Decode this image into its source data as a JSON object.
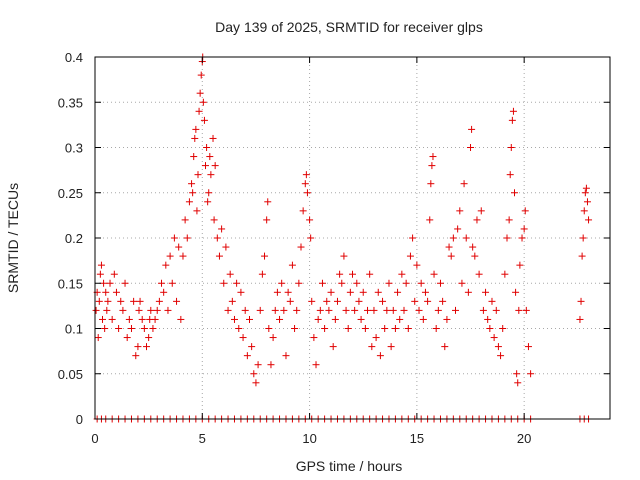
{
  "chart_data": {
    "type": "scatter",
    "title": "Day 139 of 2025, SRMTID for receiver glps",
    "xlabel": "GPS time / hours",
    "ylabel": "SRMTID / TECUs",
    "xlim": [
      0,
      24
    ],
    "ylim": [
      0,
      0.4
    ],
    "x_ticks": [
      0,
      5,
      10,
      15,
      20
    ],
    "x_tick_labels": [
      "0",
      "5",
      "10",
      "15",
      "20"
    ],
    "y_ticks": [
      0,
      0.05,
      0.1,
      0.15,
      0.2,
      0.25,
      0.3,
      0.35,
      0.4
    ],
    "y_tick_labels": [
      "0",
      "0.05",
      "0.1",
      "0.15",
      "0.2",
      "0.25",
      "0.3",
      "0.35",
      "0.4"
    ],
    "grid": true,
    "marker": "plus",
    "marker_color": "#e00000",
    "series": [
      {
        "name": "SRMTID",
        "points": [
          [
            0.05,
            0.12
          ],
          [
            0.1,
            0.14
          ],
          [
            0.15,
            0.09
          ],
          [
            0.2,
            0.13
          ],
          [
            0.25,
            0.16
          ],
          [
            0.3,
            0.17
          ],
          [
            0.35,
            0.11
          ],
          [
            0.4,
            0.15
          ],
          [
            0.45,
            0.1
          ],
          [
            0.5,
            0.14
          ],
          [
            0.55,
            0.12
          ],
          [
            0.6,
            0.13
          ],
          [
            0.7,
            0.15
          ],
          [
            0.8,
            0.11
          ],
          [
            0.9,
            0.16
          ],
          [
            1.0,
            0.14
          ],
          [
            1.1,
            0.1
          ],
          [
            1.2,
            0.13
          ],
          [
            1.3,
            0.12
          ],
          [
            1.4,
            0.15
          ],
          [
            1.5,
            0.09
          ],
          [
            1.6,
            0.11
          ],
          [
            1.7,
            0.1
          ],
          [
            1.8,
            0.13
          ],
          [
            1.9,
            0.07
          ],
          [
            2.0,
            0.08
          ],
          [
            2.05,
            0.12
          ],
          [
            2.1,
            0.13
          ],
          [
            2.2,
            0.11
          ],
          [
            2.3,
            0.1
          ],
          [
            2.4,
            0.08
          ],
          [
            2.5,
            0.09
          ],
          [
            2.55,
            0.11
          ],
          [
            2.6,
            0.12
          ],
          [
            2.7,
            0.1
          ],
          [
            2.8,
            0.11
          ],
          [
            2.9,
            0.12
          ],
          [
            3.0,
            0.13
          ],
          [
            3.1,
            0.15
          ],
          [
            3.2,
            0.14
          ],
          [
            3.3,
            0.17
          ],
          [
            3.4,
            0.12
          ],
          [
            3.5,
            0.18
          ],
          [
            3.6,
            0.15
          ],
          [
            3.7,
            0.2
          ],
          [
            3.8,
            0.13
          ],
          [
            3.9,
            0.19
          ],
          [
            4.0,
            0.11
          ],
          [
            4.1,
            0.18
          ],
          [
            4.2,
            0.22
          ],
          [
            4.3,
            0.2
          ],
          [
            4.4,
            0.24
          ],
          [
            4.5,
            0.26
          ],
          [
            4.55,
            0.25
          ],
          [
            4.6,
            0.29
          ],
          [
            4.65,
            0.31
          ],
          [
            4.7,
            0.32
          ],
          [
            4.75,
            0.23
          ],
          [
            4.8,
            0.27
          ],
          [
            4.85,
            0.34
          ],
          [
            4.9,
            0.36
          ],
          [
            4.95,
            0.38
          ],
          [
            5.0,
            0.395
          ],
          [
            5.02,
            0.4
          ],
          [
            5.05,
            0.35
          ],
          [
            5.1,
            0.33
          ],
          [
            5.15,
            0.28
          ],
          [
            5.2,
            0.3
          ],
          [
            5.25,
            0.24
          ],
          [
            5.3,
            0.25
          ],
          [
            5.35,
            0.29
          ],
          [
            5.4,
            0.27
          ],
          [
            5.5,
            0.31
          ],
          [
            5.55,
            0.22
          ],
          [
            5.6,
            0.28
          ],
          [
            5.7,
            0.2
          ],
          [
            5.8,
            0.18
          ],
          [
            5.9,
            0.21
          ],
          [
            6.0,
            0.15
          ],
          [
            6.1,
            0.19
          ],
          [
            6.2,
            0.12
          ],
          [
            6.3,
            0.16
          ],
          [
            6.4,
            0.13
          ],
          [
            6.5,
            0.11
          ],
          [
            6.6,
            0.15
          ],
          [
            6.7,
            0.1
          ],
          [
            6.8,
            0.14
          ],
          [
            6.9,
            0.09
          ],
          [
            7.0,
            0.12
          ],
          [
            7.1,
            0.07
          ],
          [
            7.2,
            0.11
          ],
          [
            7.3,
            0.08
          ],
          [
            7.4,
            0.05
          ],
          [
            7.5,
            0.04
          ],
          [
            7.6,
            0.06
          ],
          [
            7.7,
            0.12
          ],
          [
            7.8,
            0.16
          ],
          [
            7.9,
            0.18
          ],
          [
            8.0,
            0.22
          ],
          [
            8.05,
            0.24
          ],
          [
            8.1,
            0.1
          ],
          [
            8.2,
            0.06
          ],
          [
            8.3,
            0.09
          ],
          [
            8.4,
            0.12
          ],
          [
            8.5,
            0.14
          ],
          [
            8.6,
            0.11
          ],
          [
            8.7,
            0.15
          ],
          [
            8.8,
            0.12
          ],
          [
            8.9,
            0.07
          ],
          [
            9.0,
            0.14
          ],
          [
            9.1,
            0.13
          ],
          [
            9.2,
            0.17
          ],
          [
            9.3,
            0.1
          ],
          [
            9.4,
            0.12
          ],
          [
            9.5,
            0.15
          ],
          [
            9.6,
            0.19
          ],
          [
            9.7,
            0.23
          ],
          [
            9.8,
            0.26
          ],
          [
            9.85,
            0.27
          ],
          [
            9.9,
            0.25
          ],
          [
            10.0,
            0.22
          ],
          [
            10.05,
            0.2
          ],
          [
            10.1,
            0.13
          ],
          [
            10.2,
            0.09
          ],
          [
            10.3,
            0.06
          ],
          [
            10.4,
            0.11
          ],
          [
            10.5,
            0.12
          ],
          [
            10.6,
            0.15
          ],
          [
            10.7,
            0.1
          ],
          [
            10.8,
            0.13
          ],
          [
            10.9,
            0.12
          ],
          [
            11.0,
            0.14
          ],
          [
            11.1,
            0.08
          ],
          [
            11.2,
            0.11
          ],
          [
            11.3,
            0.13
          ],
          [
            11.4,
            0.16
          ],
          [
            11.5,
            0.15
          ],
          [
            11.6,
            0.18
          ],
          [
            11.7,
            0.12
          ],
          [
            11.8,
            0.1
          ],
          [
            11.9,
            0.14
          ],
          [
            12.0,
            0.16
          ],
          [
            12.1,
            0.12
          ],
          [
            12.2,
            0.15
          ],
          [
            12.3,
            0.13
          ],
          [
            12.4,
            0.11
          ],
          [
            12.5,
            0.14
          ],
          [
            12.6,
            0.1
          ],
          [
            12.7,
            0.12
          ],
          [
            12.8,
            0.16
          ],
          [
            12.9,
            0.08
          ],
          [
            13.0,
            0.12
          ],
          [
            13.1,
            0.09
          ],
          [
            13.2,
            0.14
          ],
          [
            13.3,
            0.07
          ],
          [
            13.4,
            0.13
          ],
          [
            13.5,
            0.1
          ],
          [
            13.6,
            0.12
          ],
          [
            13.7,
            0.15
          ],
          [
            13.8,
            0.08
          ],
          [
            13.9,
            0.12
          ],
          [
            14.0,
            0.1
          ],
          [
            14.1,
            0.14
          ],
          [
            14.2,
            0.11
          ],
          [
            14.3,
            0.16
          ],
          [
            14.4,
            0.12
          ],
          [
            14.5,
            0.15
          ],
          [
            14.6,
            0.1
          ],
          [
            14.7,
            0.18
          ],
          [
            14.8,
            0.2
          ],
          [
            14.9,
            0.13
          ],
          [
            15.0,
            0.17
          ],
          [
            15.1,
            0.12
          ],
          [
            15.2,
            0.15
          ],
          [
            15.3,
            0.11
          ],
          [
            15.4,
            0.14
          ],
          [
            15.5,
            0.13
          ],
          [
            15.6,
            0.22
          ],
          [
            15.65,
            0.26
          ],
          [
            15.7,
            0.28
          ],
          [
            15.75,
            0.29
          ],
          [
            15.8,
            0.16
          ],
          [
            15.9,
            0.1
          ],
          [
            16.0,
            0.12
          ],
          [
            16.1,
            0.15
          ],
          [
            16.2,
            0.13
          ],
          [
            16.3,
            0.08
          ],
          [
            16.4,
            0.11
          ],
          [
            16.5,
            0.19
          ],
          [
            16.6,
            0.18
          ],
          [
            16.7,
            0.2
          ],
          [
            16.8,
            0.12
          ],
          [
            16.9,
            0.21
          ],
          [
            17.0,
            0.23
          ],
          [
            17.1,
            0.15
          ],
          [
            17.2,
            0.26
          ],
          [
            17.3,
            0.2
          ],
          [
            17.4,
            0.14
          ],
          [
            17.5,
            0.3
          ],
          [
            17.55,
            0.32
          ],
          [
            17.6,
            0.19
          ],
          [
            17.7,
            0.18
          ],
          [
            17.8,
            0.22
          ],
          [
            17.9,
            0.16
          ],
          [
            18.0,
            0.23
          ],
          [
            18.1,
            0.12
          ],
          [
            18.2,
            0.14
          ],
          [
            18.3,
            0.11
          ],
          [
            18.4,
            0.1
          ],
          [
            18.5,
            0.13
          ],
          [
            18.6,
            0.09
          ],
          [
            18.7,
            0.12
          ],
          [
            18.8,
            0.08
          ],
          [
            18.9,
            0.07
          ],
          [
            19.0,
            0.1
          ],
          [
            19.1,
            0.16
          ],
          [
            19.2,
            0.2
          ],
          [
            19.3,
            0.22
          ],
          [
            19.35,
            0.27
          ],
          [
            19.4,
            0.3
          ],
          [
            19.45,
            0.33
          ],
          [
            19.5,
            0.34
          ],
          [
            19.55,
            0.25
          ],
          [
            19.6,
            0.14
          ],
          [
            19.65,
            0.05
          ],
          [
            19.7,
            0.04
          ],
          [
            19.75,
            0.12
          ],
          [
            19.8,
            0.17
          ],
          [
            19.9,
            0.2
          ],
          [
            20.0,
            0.21
          ],
          [
            20.05,
            0.23
          ],
          [
            20.1,
            0.12
          ],
          [
            20.2,
            0.08
          ],
          [
            20.3,
            0.05
          ],
          [
            22.6,
            0.11
          ],
          [
            22.65,
            0.13
          ],
          [
            22.7,
            0.18
          ],
          [
            22.75,
            0.2
          ],
          [
            22.8,
            0.23
          ],
          [
            22.85,
            0.25
          ],
          [
            22.9,
            0.255
          ],
          [
            22.95,
            0.24
          ],
          [
            23.0,
            0.22
          ]
        ],
        "zero_points_x": [
          0.1,
          0.3,
          0.5,
          0.8,
          1.1,
          1.4,
          1.7,
          2.0,
          2.3,
          2.6,
          2.9,
          3.2,
          3.5,
          3.8,
          4.1,
          4.4,
          4.7,
          5.0,
          5.3,
          5.6,
          5.9,
          6.2,
          6.5,
          6.8,
          7.1,
          7.4,
          7.7,
          8.0,
          8.3,
          8.6,
          8.9,
          9.2,
          9.5,
          9.8,
          10.1,
          10.4,
          10.7,
          11.0,
          11.3,
          11.6,
          11.9,
          12.2,
          12.5,
          12.8,
          13.1,
          13.4,
          13.7,
          14.0,
          14.3,
          14.6,
          14.9,
          15.2,
          15.5,
          15.8,
          16.1,
          16.4,
          16.7,
          17.0,
          17.3,
          17.6,
          17.9,
          18.2,
          18.5,
          18.8,
          19.1,
          19.4,
          19.7,
          20.0,
          20.3,
          22.6,
          22.8,
          23.0
        ]
      }
    ]
  }
}
